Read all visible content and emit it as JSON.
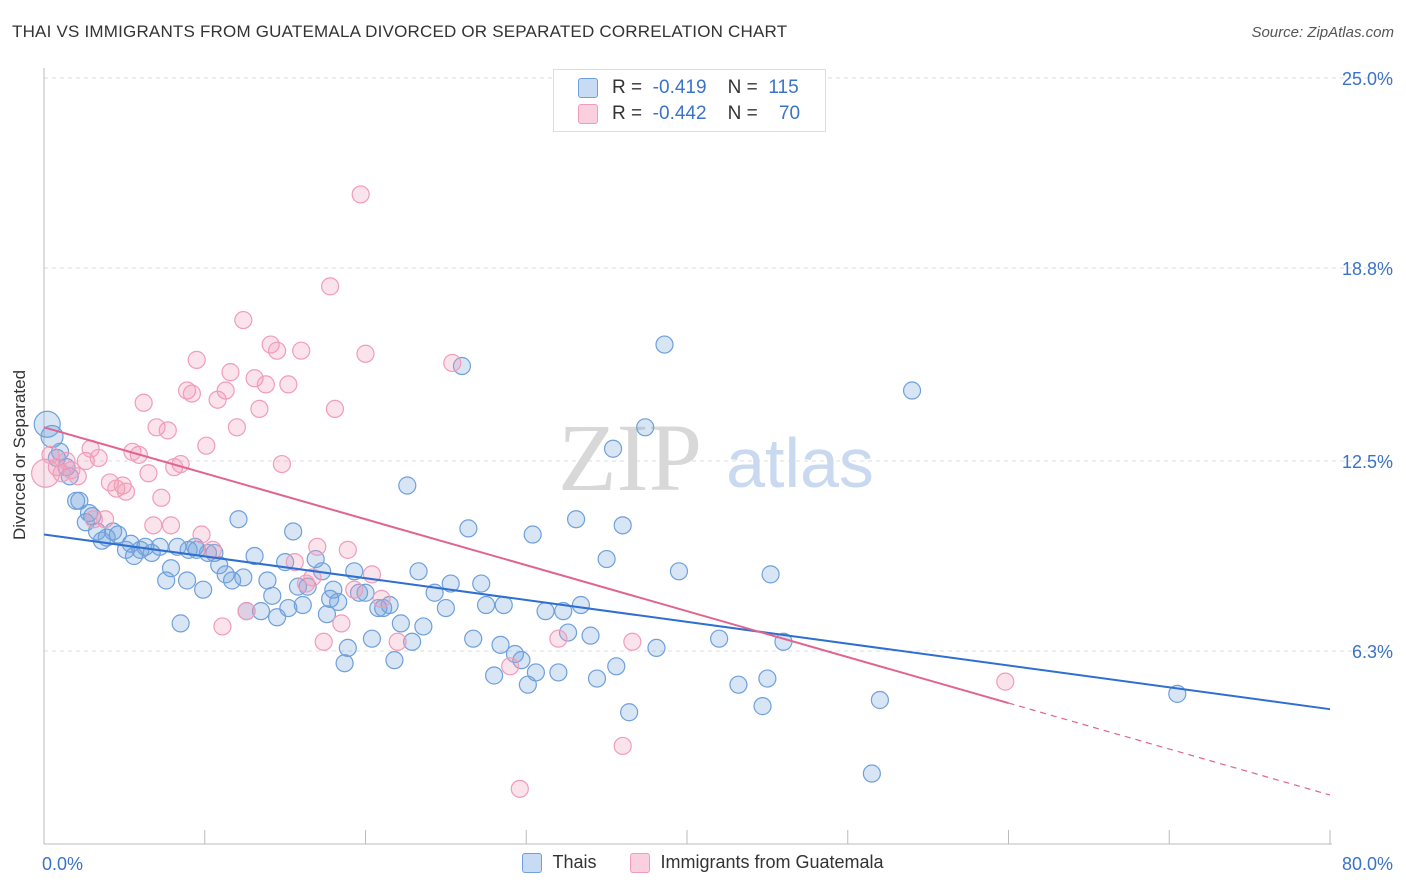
{
  "title": "THAI VS IMMIGRANTS FROM GUATEMALA DIVORCED OR SEPARATED CORRELATION CHART",
  "source": "Source: ZipAtlas.com",
  "watermark": {
    "zip": "ZIP",
    "atlas": "atlas"
  },
  "stats": [
    {
      "r_label": "R =",
      "r_value": "-0.419",
      "n_label": "N =",
      "n_value": "115",
      "color": "#6fa0dc"
    },
    {
      "r_label": "R =",
      "r_value": "-0.442",
      "n_label": "N =",
      "n_value": "70",
      "color": "#f19cb8"
    }
  ],
  "legend": [
    {
      "label": "Thais",
      "color": "#6fa0dc"
    },
    {
      "label": "Immigrants from Guatemala",
      "color": "#f19cb8"
    }
  ],
  "chart_data": {
    "type": "scatter",
    "ylabel": "Divorced or Separated",
    "xlim": [
      0,
      80
    ],
    "ylim": [
      0,
      25
    ],
    "x_tick_labels": [
      {
        "value": 0,
        "label": "0.0%"
      },
      {
        "value": 80,
        "label": "80.0%"
      }
    ],
    "y_tick_labels": [
      {
        "value": 6.3,
        "label": "6.3%"
      },
      {
        "value": 12.5,
        "label": "12.5%"
      },
      {
        "value": 18.8,
        "label": "18.8%"
      },
      {
        "value": 25.0,
        "label": "25.0%"
      }
    ],
    "grid": true,
    "legend_position": "bottom",
    "series": [
      {
        "name": "Thais",
        "color": "#6fa0dc",
        "trend_color": "#2f6fd0",
        "trend": {
          "x0": 0,
          "y0": 10.1,
          "x1": 80,
          "y1": 4.4
        },
        "points": [
          [
            0.2,
            13.7
          ],
          [
            0.5,
            13.3
          ],
          [
            1.0,
            12.8
          ],
          [
            1.4,
            12.3
          ],
          [
            1.6,
            12.0
          ],
          [
            2.0,
            11.2
          ],
          [
            2.2,
            11.2
          ],
          [
            2.6,
            10.5
          ],
          [
            3.0,
            10.7
          ],
          [
            3.3,
            10.2
          ],
          [
            3.6,
            9.9
          ],
          [
            3.9,
            10.0
          ],
          [
            4.3,
            10.2
          ],
          [
            4.6,
            10.1
          ],
          [
            5.1,
            9.6
          ],
          [
            5.4,
            9.8
          ],
          [
            5.6,
            9.4
          ],
          [
            6.0,
            9.6
          ],
          [
            6.3,
            9.7
          ],
          [
            6.7,
            9.5
          ],
          [
            7.2,
            9.7
          ],
          [
            7.6,
            8.6
          ],
          [
            7.9,
            9.0
          ],
          [
            8.3,
            9.7
          ],
          [
            8.5,
            7.2
          ],
          [
            8.9,
            8.6
          ],
          [
            9.0,
            9.6
          ],
          [
            9.5,
            9.6
          ],
          [
            9.9,
            8.3
          ],
          [
            10.2,
            9.5
          ],
          [
            10.6,
            9.5
          ],
          [
            10.9,
            9.1
          ],
          [
            11.3,
            8.8
          ],
          [
            11.7,
            8.6
          ],
          [
            12.1,
            10.6
          ],
          [
            12.4,
            8.7
          ],
          [
            12.6,
            7.6
          ],
          [
            13.1,
            9.4
          ],
          [
            13.5,
            7.6
          ],
          [
            13.9,
            8.6
          ],
          [
            14.2,
            8.1
          ],
          [
            14.5,
            7.4
          ],
          [
            15.0,
            9.2
          ],
          [
            15.2,
            7.7
          ],
          [
            15.5,
            10.2
          ],
          [
            15.8,
            8.4
          ],
          [
            16.1,
            7.8
          ],
          [
            16.4,
            8.4
          ],
          [
            16.9,
            9.3
          ],
          [
            17.3,
            8.9
          ],
          [
            17.6,
            7.5
          ],
          [
            18.0,
            8.3
          ],
          [
            18.3,
            7.9
          ],
          [
            18.7,
            5.9
          ],
          [
            18.9,
            6.4
          ],
          [
            19.3,
            8.9
          ],
          [
            19.6,
            8.2
          ],
          [
            20.0,
            8.2
          ],
          [
            20.4,
            6.7
          ],
          [
            20.8,
            7.7
          ],
          [
            21.1,
            7.7
          ],
          [
            21.5,
            7.8
          ],
          [
            21.8,
            6.0
          ],
          [
            22.2,
            7.2
          ],
          [
            22.6,
            11.7
          ],
          [
            22.9,
            6.6
          ],
          [
            23.3,
            8.9
          ],
          [
            23.6,
            7.1
          ],
          [
            24.3,
            8.2
          ],
          [
            25.0,
            7.7
          ],
          [
            25.3,
            8.5
          ],
          [
            26.0,
            15.6
          ],
          [
            26.4,
            10.3
          ],
          [
            26.7,
            6.7
          ],
          [
            27.2,
            8.5
          ],
          [
            27.5,
            7.8
          ],
          [
            28.0,
            5.5
          ],
          [
            28.4,
            6.5
          ],
          [
            28.6,
            7.8
          ],
          [
            29.3,
            6.2
          ],
          [
            29.7,
            6.0
          ],
          [
            30.1,
            5.2
          ],
          [
            30.4,
            10.1
          ],
          [
            30.6,
            5.6
          ],
          [
            31.2,
            7.6
          ],
          [
            32.0,
            5.6
          ],
          [
            32.3,
            7.6
          ],
          [
            32.6,
            6.9
          ],
          [
            33.1,
            10.6
          ],
          [
            33.4,
            7.8
          ],
          [
            34.0,
            6.8
          ],
          [
            34.4,
            5.4
          ],
          [
            35.0,
            9.3
          ],
          [
            35.4,
            12.9
          ],
          [
            35.6,
            5.8
          ],
          [
            36.0,
            10.4
          ],
          [
            36.4,
            4.3
          ],
          [
            37.4,
            13.6
          ],
          [
            38.1,
            6.4
          ],
          [
            38.6,
            16.3
          ],
          [
            39.5,
            8.9
          ],
          [
            42.0,
            6.7
          ],
          [
            43.2,
            5.2
          ],
          [
            44.7,
            4.5
          ],
          [
            45.0,
            5.4
          ],
          [
            45.2,
            8.8
          ],
          [
            46.0,
            6.6
          ],
          [
            52.0,
            4.7
          ],
          [
            54.0,
            14.8
          ],
          [
            51.5,
            2.3
          ],
          [
            70.5,
            4.9
          ],
          [
            0.8,
            12.6
          ],
          [
            2.8,
            10.8
          ],
          [
            9.4,
            9.7
          ],
          [
            17.8,
            8.0
          ]
        ]
      },
      {
        "name": "Immigrants from Guatemala",
        "color": "#f19cb8",
        "trend_color": "#e0648f",
        "trend": {
          "x0": 0,
          "y0": 13.6,
          "x1": 60,
          "y1": 4.6
        },
        "trend_dashed_to": {
          "x": 80,
          "y": 1.6
        },
        "points": [
          [
            0.1,
            12.1
          ],
          [
            0.4,
            12.7
          ],
          [
            0.8,
            12.3
          ],
          [
            1.1,
            12.1
          ],
          [
            1.4,
            12.5
          ],
          [
            1.7,
            12.2
          ],
          [
            2.1,
            12.0
          ],
          [
            2.6,
            12.5
          ],
          [
            2.9,
            12.9
          ],
          [
            3.1,
            10.6
          ],
          [
            3.4,
            12.6
          ],
          [
            3.8,
            10.6
          ],
          [
            4.1,
            11.8
          ],
          [
            4.5,
            11.6
          ],
          [
            4.9,
            11.7
          ],
          [
            5.1,
            11.5
          ],
          [
            5.5,
            12.8
          ],
          [
            5.9,
            12.7
          ],
          [
            6.2,
            14.4
          ],
          [
            6.5,
            12.1
          ],
          [
            6.8,
            10.4
          ],
          [
            7.0,
            13.6
          ],
          [
            7.3,
            11.3
          ],
          [
            7.7,
            13.5
          ],
          [
            7.9,
            10.4
          ],
          [
            8.1,
            12.3
          ],
          [
            8.5,
            12.4
          ],
          [
            8.9,
            14.8
          ],
          [
            9.2,
            14.7
          ],
          [
            9.5,
            15.8
          ],
          [
            9.8,
            10.1
          ],
          [
            10.1,
            13.0
          ],
          [
            10.5,
            9.6
          ],
          [
            10.8,
            14.5
          ],
          [
            11.1,
            7.1
          ],
          [
            11.3,
            14.8
          ],
          [
            11.6,
            15.4
          ],
          [
            12.0,
            13.6
          ],
          [
            12.4,
            17.1
          ],
          [
            12.6,
            7.6
          ],
          [
            13.1,
            15.2
          ],
          [
            13.4,
            14.2
          ],
          [
            13.8,
            15.0
          ],
          [
            14.1,
            16.3
          ],
          [
            14.5,
            16.1
          ],
          [
            14.8,
            12.4
          ],
          [
            15.2,
            15.0
          ],
          [
            15.6,
            9.2
          ],
          [
            16.0,
            16.1
          ],
          [
            16.3,
            8.5
          ],
          [
            16.7,
            8.7
          ],
          [
            17.0,
            9.7
          ],
          [
            17.4,
            6.6
          ],
          [
            17.8,
            18.2
          ],
          [
            18.1,
            14.2
          ],
          [
            18.5,
            7.2
          ],
          [
            18.9,
            9.6
          ],
          [
            19.3,
            8.3
          ],
          [
            19.7,
            21.2
          ],
          [
            20.0,
            16.0
          ],
          [
            20.4,
            8.8
          ],
          [
            21.0,
            8.0
          ],
          [
            22.0,
            6.6
          ],
          [
            25.4,
            15.7
          ],
          [
            29.0,
            5.8
          ],
          [
            29.6,
            1.8
          ],
          [
            32.0,
            6.7
          ],
          [
            36.0,
            3.2
          ],
          [
            36.6,
            6.6
          ],
          [
            59.8,
            5.3
          ]
        ]
      }
    ]
  }
}
